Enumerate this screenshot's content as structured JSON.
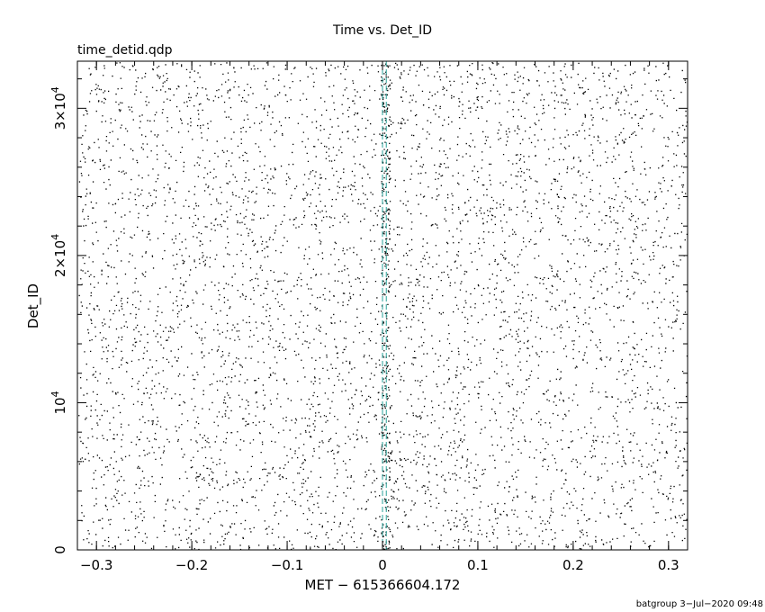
{
  "chart_data": {
    "type": "scatter",
    "title": "Time vs. Det_ID",
    "subtitle": "time_detid.qdp",
    "xlabel": "MET − 615366604.172",
    "ylabel": "Det_ID",
    "xlim": [
      -0.32,
      0.32
    ],
    "ylim": [
      0,
      33200
    ],
    "x_ticks": [
      {
        "value": -0.3,
        "label": "−0.3"
      },
      {
        "value": -0.2,
        "label": "−0.2"
      },
      {
        "value": -0.1,
        "label": "−0.1"
      },
      {
        "value": 0,
        "label": "0"
      },
      {
        "value": 0.1,
        "label": "0.1"
      },
      {
        "value": 0.2,
        "label": "0.2"
      },
      {
        "value": 0.3,
        "label": "0.3"
      }
    ],
    "y_ticks": [
      {
        "value": 0,
        "label": "0"
      },
      {
        "value": 10000,
        "label": "10",
        "exp": "4"
      },
      {
        "value": 20000,
        "label": "2×10",
        "exp": "4"
      },
      {
        "value": 30000,
        "label": "3×10",
        "exp": "4"
      }
    ],
    "vertical_lines": [
      {
        "x": 0.0,
        "color": "#2aa198",
        "style": "dashed"
      },
      {
        "x": 0.004,
        "color": "#2aa198",
        "style": "dashed"
      }
    ],
    "point_color": "#000000",
    "grid": false,
    "legend": "none"
  },
  "footer": "batgroup  3−Jul−2020 09:48"
}
